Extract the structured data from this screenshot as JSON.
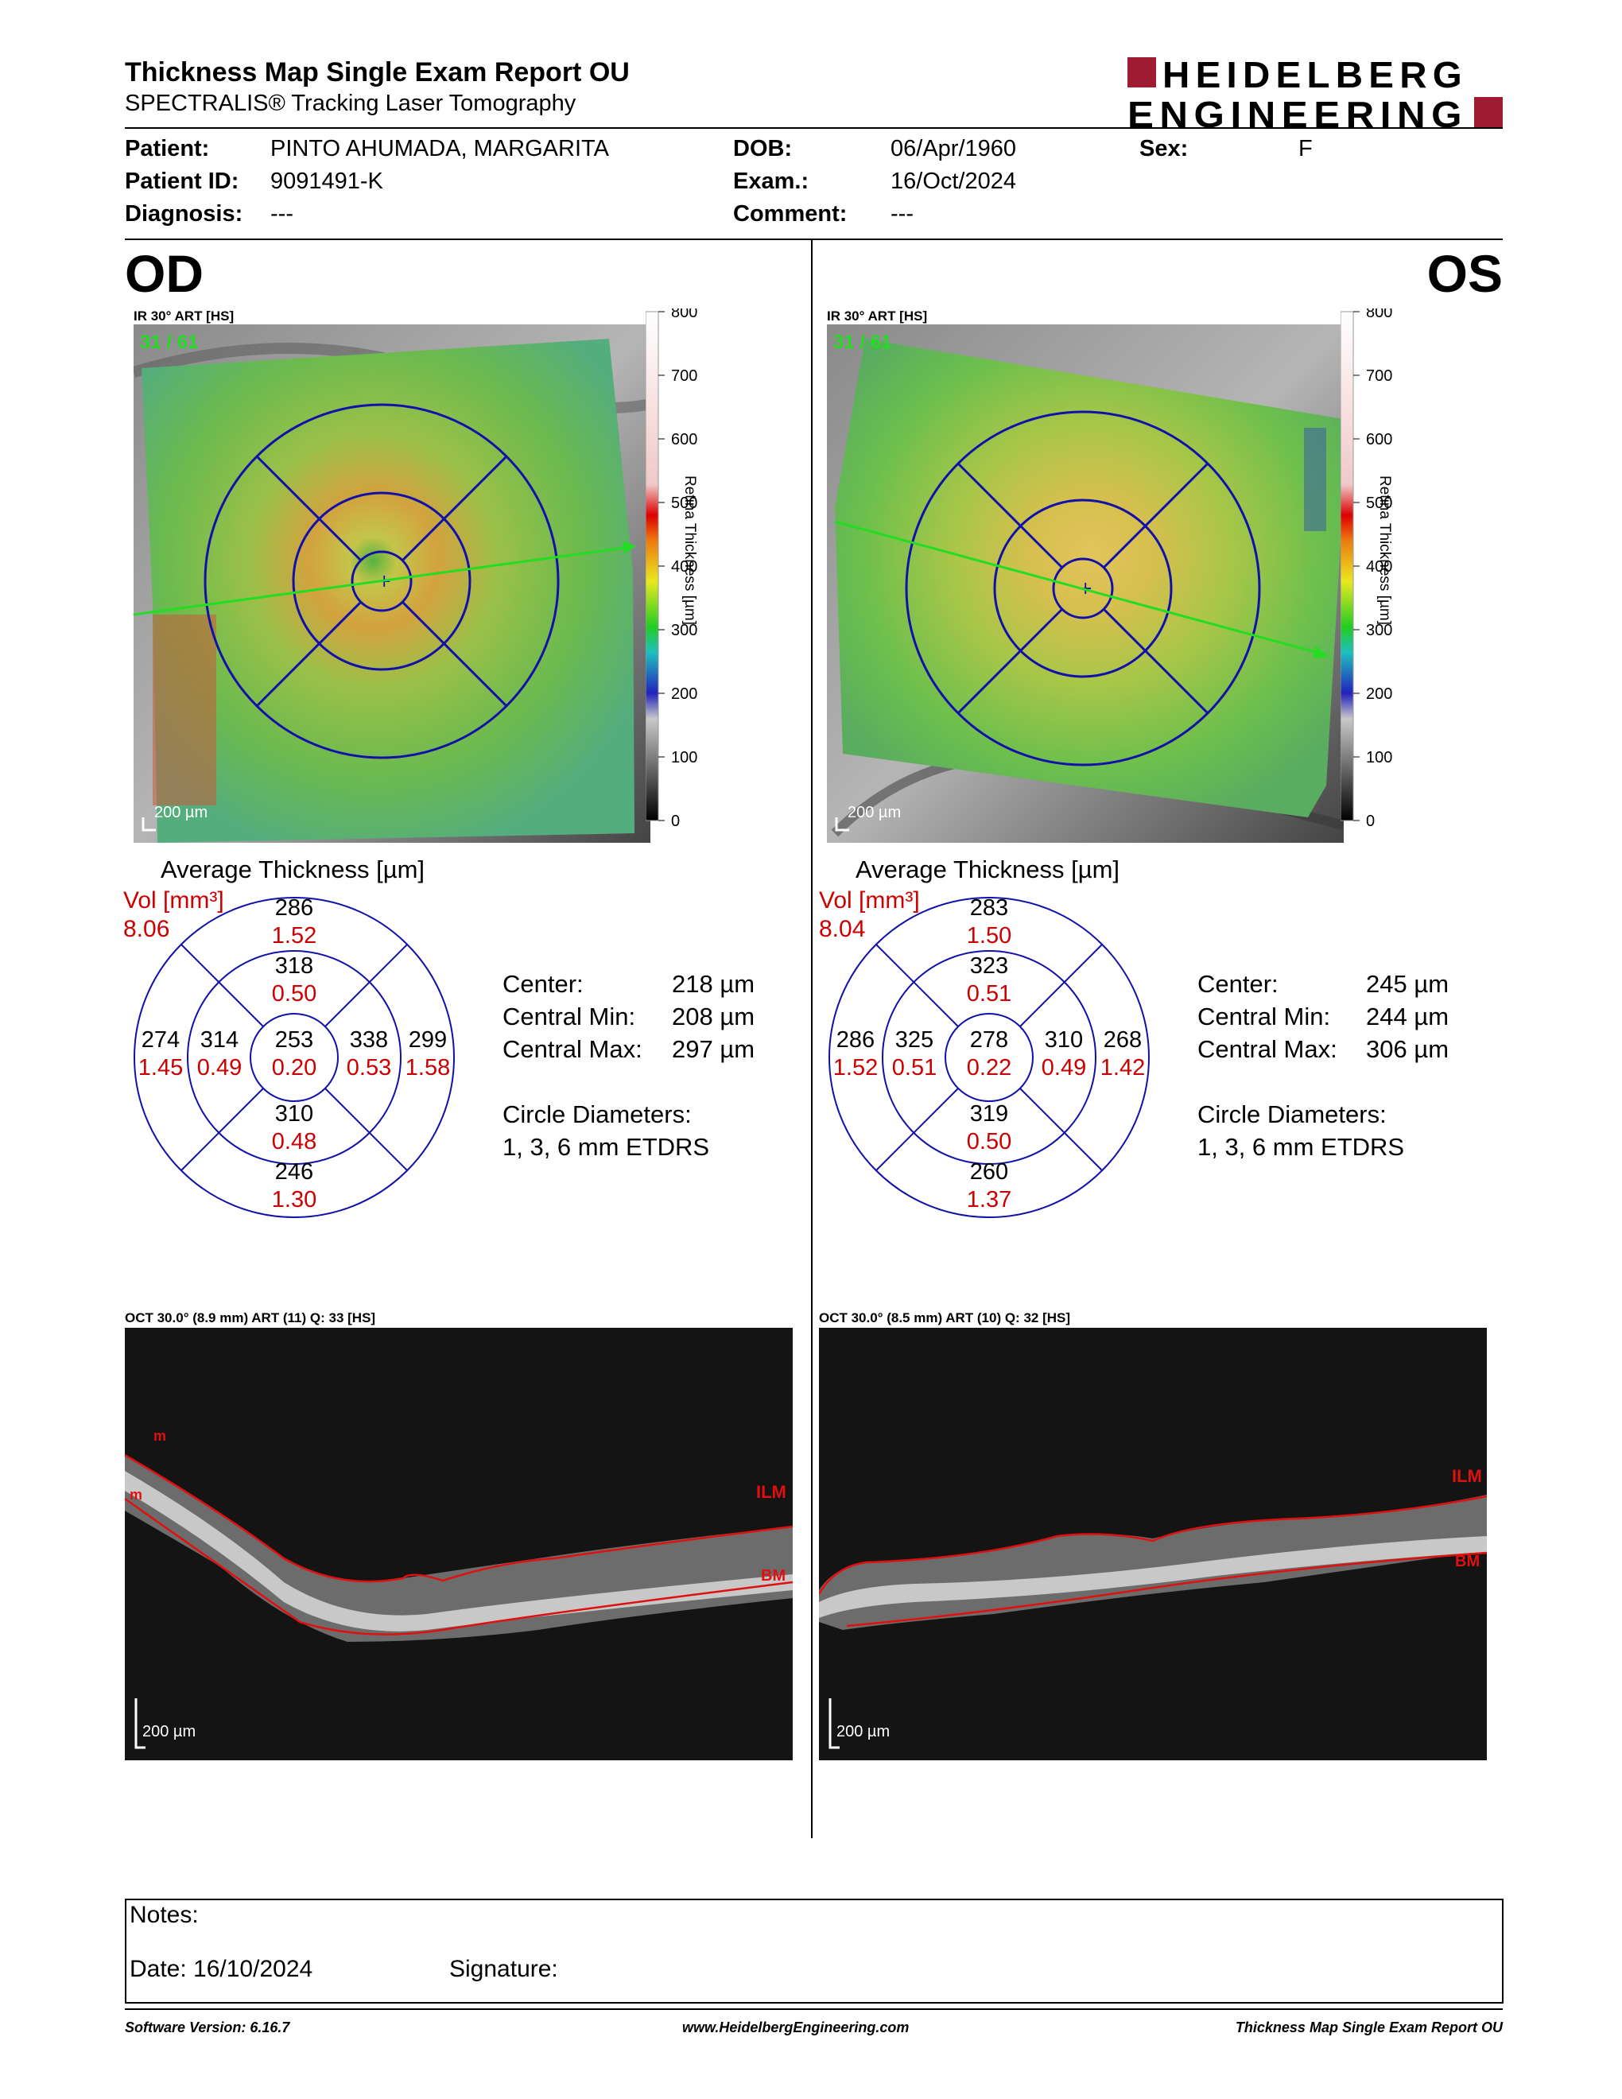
{
  "header": {
    "title": "Thickness Map Single Exam Report OU",
    "subtitle": "SPECTRALIS® Tracking Laser Tomography",
    "logo_line1": "HEIDELBERG",
    "logo_line2": "ENGINEERING",
    "brand_color": "#9e1b32"
  },
  "patient": {
    "patient_label": "Patient:",
    "patient_value": "PINTO AHUMADA, MARGARITA",
    "id_label": "Patient ID:",
    "id_value": "9091491-K",
    "diagnosis_label": "Diagnosis:",
    "diagnosis_value": "---",
    "dob_label": "DOB:",
    "dob_value": "06/Apr/1960",
    "exam_label": "Exam.:",
    "exam_value": "16/Oct/2024",
    "comment_label": "Comment:",
    "comment_value": "---",
    "sex_label": "Sex:",
    "sex_value": "F"
  },
  "scale": {
    "ticks": [
      "800",
      "700",
      "600",
      "500",
      "400",
      "300",
      "200",
      "100",
      "0"
    ],
    "title": "Retina Thickness [µm]"
  },
  "common": {
    "ir_label": "IR 30° ART [HS]",
    "frame_label": "31 / 61",
    "scale_bar": "200 µm",
    "avg_title": "Average Thickness [µm]",
    "vol_label": "Vol [mm³]",
    "center_label": "Center:",
    "min_label": "Central Min:",
    "max_label": "Central Max:",
    "diam_label": "Circle Diameters:",
    "diam_value": "1, 3, 6 mm ETDRS",
    "marker_ilm": "ILM",
    "marker_bm": "BM",
    "marker_m": "m"
  },
  "od": {
    "eye": "OD",
    "vol": "8.06",
    "grid": {
      "outer_sup": [
        "286",
        "1.52"
      ],
      "inner_sup": [
        "318",
        "0.50"
      ],
      "outer_left": [
        "274",
        "1.45"
      ],
      "inner_left": [
        "314",
        "0.49"
      ],
      "center": [
        "253",
        "0.20"
      ],
      "inner_right": [
        "338",
        "0.53"
      ],
      "outer_right": [
        "299",
        "1.58"
      ],
      "inner_inf": [
        "310",
        "0.48"
      ],
      "outer_inf": [
        "246",
        "1.30"
      ]
    },
    "center_val": "218 µm",
    "min_val": "208 µm",
    "max_val": "297 µm",
    "oct_label": "OCT 30.0° (8.9 mm) ART (11) Q: 33 [HS]"
  },
  "os": {
    "eye": "OS",
    "vol": "8.04",
    "grid": {
      "outer_sup": [
        "283",
        "1.50"
      ],
      "inner_sup": [
        "323",
        "0.51"
      ],
      "outer_left": [
        "286",
        "1.52"
      ],
      "inner_left": [
        "325",
        "0.51"
      ],
      "center": [
        "278",
        "0.22"
      ],
      "inner_right": [
        "310",
        "0.49"
      ],
      "outer_right": [
        "268",
        "1.42"
      ],
      "inner_inf": [
        "319",
        "0.50"
      ],
      "outer_inf": [
        "260",
        "1.37"
      ]
    },
    "center_val": "245 µm",
    "min_val": "244 µm",
    "max_val": "306 µm",
    "oct_label": "OCT 30.0° (8.5 mm) ART (10) Q: 32 [HS]"
  },
  "notes": {
    "notes_label": "Notes:",
    "date_label": "Date: 16/10/2024",
    "signature_label": "Signature:"
  },
  "footer": {
    "software": "Software Version: 6.16.7",
    "url": "www.HeidelbergEngineering.com",
    "report": "Thickness Map Single Exam Report OU"
  }
}
